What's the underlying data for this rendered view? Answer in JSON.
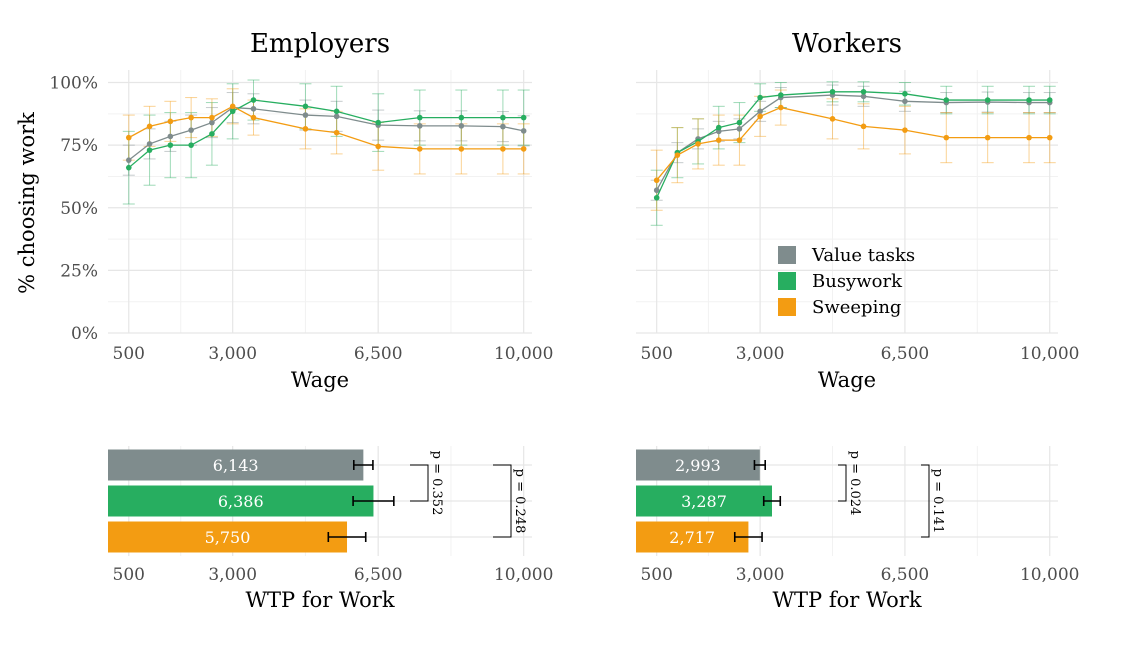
{
  "colors": {
    "value": "#7f8c8d",
    "busy": "#27ae60",
    "sweep": "#f39c12"
  },
  "legend": [
    "Value tasks",
    "Busywork",
    "Sweeping"
  ],
  "ylabel": "% choosing work",
  "x_ticks": [
    500,
    3000,
    6500,
    10000
  ],
  "x_tick_labels": [
    "500",
    "3,000",
    "6,500",
    "10,000"
  ],
  "y_ticks": [
    0,
    0.25,
    0.5,
    0.75,
    1.0
  ],
  "y_tick_labels": [
    "0%",
    "25%",
    "50%",
    "75%",
    "100%"
  ],
  "chart_data": [
    {
      "type": "line",
      "title": "Employers",
      "xlabel": "Wage",
      "ylabel": "% choosing work",
      "xlim": [
        0,
        10200
      ],
      "ylim": [
        0,
        1.05
      ],
      "x": [
        500,
        1000,
        1500,
        2000,
        2500,
        3000,
        3500,
        4750,
        5500,
        6500,
        7500,
        8500,
        9500,
        10000
      ],
      "series": [
        {
          "name": "Value tasks",
          "color": "#7f8c8d",
          "values": [
            0.69,
            0.755,
            0.785,
            0.81,
            0.84,
            0.9,
            0.895,
            0.87,
            0.865,
            0.83,
            0.827,
            0.827,
            0.824,
            0.807
          ],
          "err": [
            0.06,
            0.06,
            0.06,
            0.06,
            0.06,
            0.06,
            0.06,
            0.06,
            0.06,
            0.06,
            0.06,
            0.06,
            0.06,
            0.06
          ]
        },
        {
          "name": "Busywork",
          "color": "#27ae60",
          "values": [
            0.66,
            0.73,
            0.75,
            0.75,
            0.795,
            0.885,
            0.93,
            0.905,
            0.885,
            0.84,
            0.86,
            0.86,
            0.86,
            0.86
          ],
          "err": [
            0.145,
            0.14,
            0.13,
            0.13,
            0.125,
            0.11,
            0.08,
            0.09,
            0.1,
            0.115,
            0.11,
            0.11,
            0.11,
            0.11
          ]
        },
        {
          "name": "Sweeping",
          "color": "#f39c12",
          "values": [
            0.78,
            0.825,
            0.845,
            0.86,
            0.86,
            0.905,
            0.86,
            0.815,
            0.8,
            0.745,
            0.735,
            0.735,
            0.735,
            0.735
          ],
          "err": [
            0.09,
            0.08,
            0.08,
            0.08,
            0.075,
            0.07,
            0.07,
            0.08,
            0.085,
            0.095,
            0.1,
            0.1,
            0.1,
            0.1
          ]
        }
      ]
    },
    {
      "type": "line",
      "title": "Workers",
      "xlabel": "Wage",
      "ylabel": "",
      "xlim": [
        0,
        10200
      ],
      "ylim": [
        0,
        1.05
      ],
      "x": [
        500,
        1000,
        1500,
        2000,
        2500,
        3000,
        3500,
        4750,
        5500,
        6500,
        7500,
        8500,
        9500,
        10000
      ],
      "series": [
        {
          "name": "Value tasks",
          "color": "#7f8c8d",
          "values": [
            0.57,
            0.72,
            0.775,
            0.805,
            0.815,
            0.885,
            0.94,
            0.95,
            0.945,
            0.925,
            0.92,
            0.922,
            0.92,
            0.92
          ],
          "err": [
            0.04,
            0.04,
            0.04,
            0.04,
            0.04,
            0.04,
            0.04,
            0.04,
            0.04,
            0.04,
            0.04,
            0.04,
            0.04,
            0.04
          ]
        },
        {
          "name": "Busywork",
          "color": "#27ae60",
          "values": [
            0.54,
            0.72,
            0.765,
            0.82,
            0.84,
            0.94,
            0.95,
            0.963,
            0.963,
            0.955,
            0.93,
            0.93,
            0.93,
            0.93
          ],
          "err": [
            0.11,
            0.1,
            0.09,
            0.085,
            0.08,
            0.055,
            0.05,
            0.04,
            0.04,
            0.045,
            0.055,
            0.055,
            0.055,
            0.055
          ]
        },
        {
          "name": "Sweeping",
          "color": "#f39c12",
          "values": [
            0.61,
            0.71,
            0.755,
            0.77,
            0.77,
            0.865,
            0.9,
            0.855,
            0.825,
            0.81,
            0.78,
            0.78,
            0.78,
            0.78
          ],
          "err": [
            0.12,
            0.11,
            0.1,
            0.1,
            0.1,
            0.08,
            0.07,
            0.08,
            0.09,
            0.095,
            0.1,
            0.1,
            0.1,
            0.1
          ]
        }
      ]
    },
    {
      "type": "bar",
      "orientation": "horizontal",
      "xlabel": "WTP for Work",
      "xlim": [
        0,
        10200
      ],
      "categories": [
        "Value tasks",
        "Busywork",
        "Sweeping"
      ],
      "values": [
        6143,
        6386,
        5750
      ],
      "value_labels": [
        "6,143",
        "6,386",
        "5,750"
      ],
      "err": [
        230,
        490,
        450
      ],
      "brackets": [
        {
          "pair": [
            "Value tasks",
            "Busywork"
          ],
          "label": "p = 0.352"
        },
        {
          "pair": [
            "Value tasks",
            "Sweeping"
          ],
          "label": "p = 0.248"
        }
      ]
    },
    {
      "type": "bar",
      "orientation": "horizontal",
      "xlabel": "WTP for Work",
      "xlim": [
        0,
        10200
      ],
      "categories": [
        "Value tasks",
        "Busywork",
        "Sweeping"
      ],
      "values": [
        2993,
        3287,
        2717
      ],
      "value_labels": [
        "2,993",
        "3,287",
        "2,717"
      ],
      "err": [
        130,
        200,
        330
      ],
      "brackets": [
        {
          "pair": [
            "Value tasks",
            "Busywork"
          ],
          "label": "p = 0.024"
        },
        {
          "pair": [
            "Value tasks",
            "Sweeping"
          ],
          "label": "p = 0.141"
        }
      ]
    }
  ]
}
